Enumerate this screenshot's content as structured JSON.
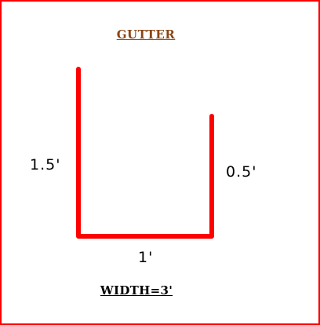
{
  "diagram": {
    "title": "GUTTER",
    "left_dimension": "1.5'",
    "right_dimension": "0.5'",
    "bottom_dimension": "1'",
    "width_label": "WIDTH=3'",
    "colors": {
      "border": "#ff0000",
      "gutter_line": "#ff0000",
      "title": "#8b4513",
      "text": "#000000",
      "background": "#ffffff"
    }
  }
}
